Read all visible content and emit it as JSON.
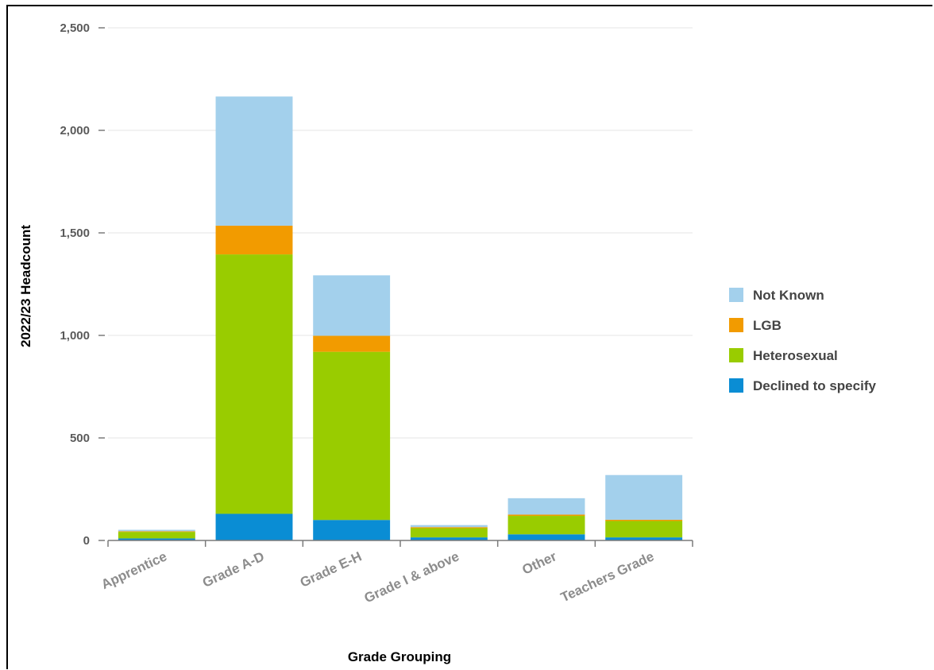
{
  "chart_data": {
    "type": "bar",
    "stacked": true,
    "categories": [
      "Apprentice",
      "Grade A-D",
      "Grade E-H",
      "Grade I & above",
      "Other",
      "Teachers Grade"
    ],
    "series": [
      {
        "name": "Declined to specify",
        "color": "#0a8dd4",
        "values": [
          10,
          130,
          100,
          15,
          30,
          15
        ]
      },
      {
        "name": "Heterosexual",
        "color": "#99cc00",
        "values": [
          32,
          1265,
          820,
          45,
          90,
          80
        ]
      },
      {
        "name": "LGB",
        "color": "#f29b00",
        "values": [
          3,
          140,
          78,
          5,
          6,
          6
        ]
      },
      {
        "name": "Not Known",
        "color": "#a3d0ec",
        "values": [
          7,
          630,
          295,
          10,
          80,
          218
        ]
      }
    ],
    "xlabel": "Grade Grouping",
    "ylabel": "2022/23 Headcount",
    "ylim": [
      0,
      2500
    ],
    "yticks": [
      0,
      500,
      1000,
      1500,
      2000,
      2500
    ],
    "ytick_labels": [
      "0",
      "500",
      "1,000",
      "1,500",
      "2,000",
      "2,500"
    ],
    "grid": true,
    "legend_position": "right",
    "legend_order": [
      "Not Known",
      "LGB",
      "Heterosexual",
      "Declined to specify"
    ]
  }
}
